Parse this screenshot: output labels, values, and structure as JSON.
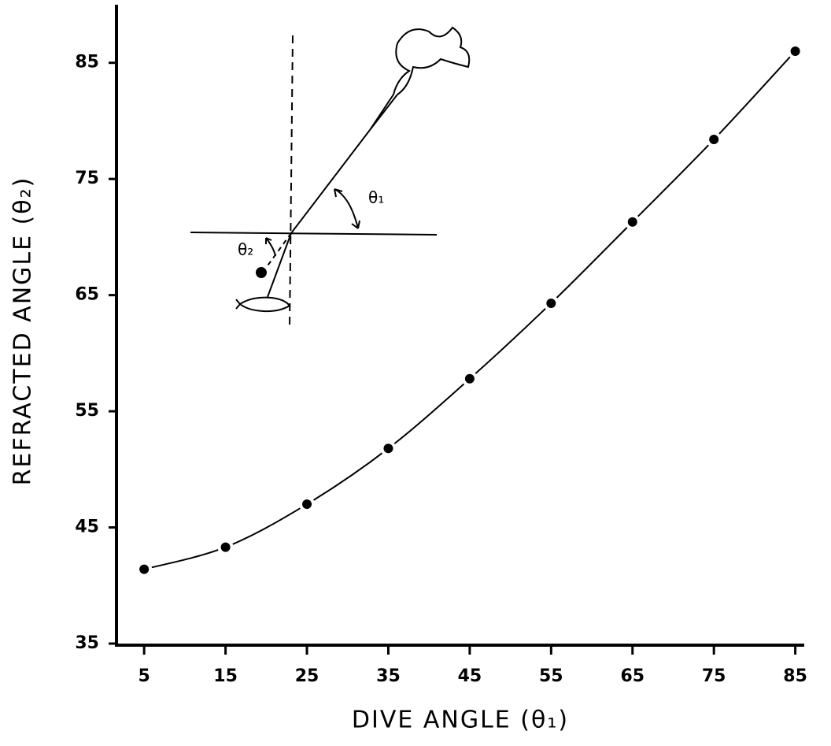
{
  "chart_data": {
    "type": "scatter",
    "x_label": "DIVE ANGLE (θ₁)",
    "y_label": "REFRACTED ANGLE (θ₂)",
    "annotations": [
      "θ₁",
      "θ₂"
    ],
    "x": [
      5,
      15,
      25,
      35,
      45,
      55,
      65,
      75,
      85
    ],
    "values": [
      41.4,
      43.3,
      47.0,
      51.8,
      57.8,
      64.3,
      71.3,
      78.4,
      86.0
    ],
    "color": "#000000",
    "line": true,
    "xlim": [
      1.6,
      86.1
    ],
    "ylim": [
      35,
      90
    ],
    "xticks": [
      5,
      15,
      25,
      35,
      45,
      55,
      65,
      75,
      85
    ],
    "yticks": [
      35,
      45,
      55,
      65,
      75,
      85
    ]
  }
}
